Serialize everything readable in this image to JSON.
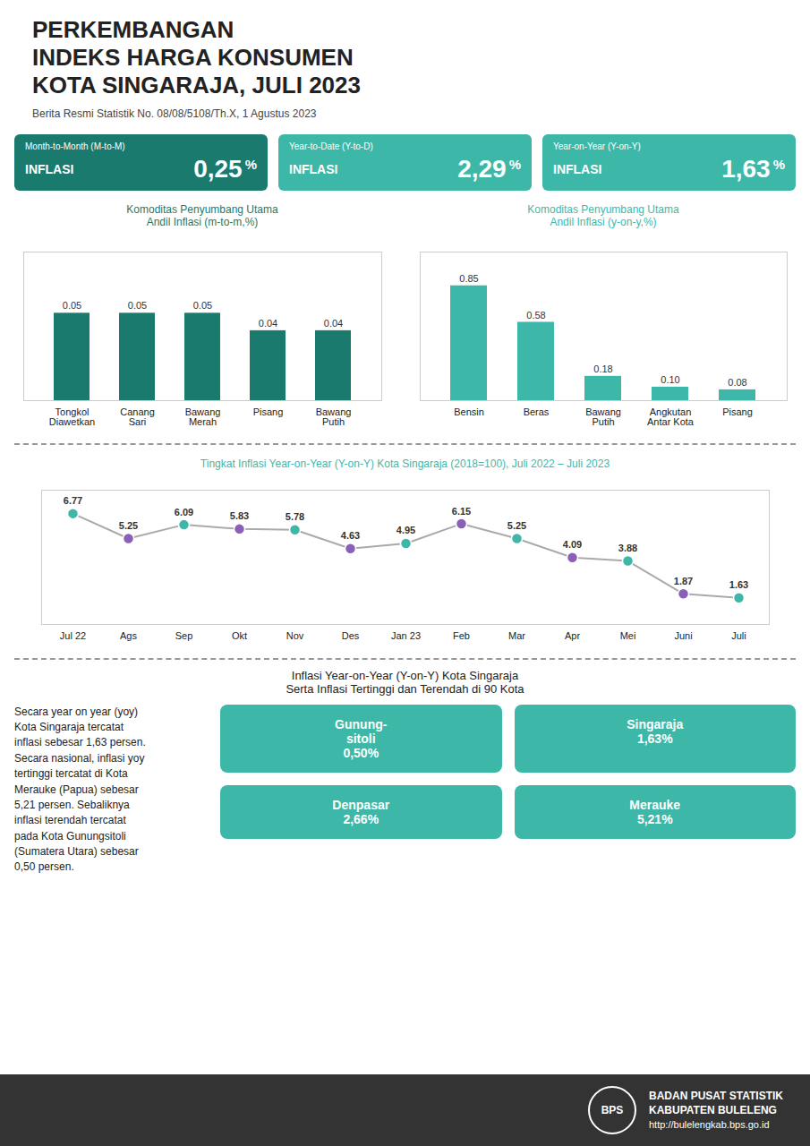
{
  "title": "PERKEMBANGAN\nINDEKS HARGA KONSUMEN\nKOTA SINGARAJA, JULI 2023",
  "subtitle": "Berita Resmi Statistik No. 08/08/5108/Th.X, 1 Agustus 2023",
  "boxes": [
    {
      "label": "Month-to-Month (M-to-M)",
      "tag": "INFLASI",
      "text": "0,25",
      "unit": "%",
      "color": "#1a7a6e"
    },
    {
      "label": "Year-to-Date (Y-to-D)",
      "tag": "INFLASI",
      "text": "2,29",
      "unit": "%",
      "color": "#3db8a8"
    },
    {
      "label": "Year-on-Year (Y-on-Y)",
      "tag": "INFLASI",
      "text": "1,63",
      "unit": "%",
      "color": "#3db8a8"
    }
  ],
  "chart_data": [
    {
      "type": "bar",
      "title": "Komoditas Penyumbang Utama\nAndil Inflasi (m-to-m,%)",
      "categories": [
        "Tongkol\nDiawetkan",
        "Canang\nSari",
        "Bawang\nMerah",
        "Pisang",
        "Bawang\nPutih"
      ],
      "values": [
        0.05,
        0.05,
        0.05,
        0.04,
        0.04
      ],
      "color": "#1a7a6e",
      "ylim": [
        0,
        0.085
      ],
      "data_labels": true,
      "tick_labels": "x"
    },
    {
      "type": "bar",
      "title": "Komoditas Penyumbang Utama\nAndil Inflasi (y-on-y,%)",
      "categories": [
        "Bensin",
        "Beras",
        "Bawang\nPutih",
        "Angkutan\nAntar Kota",
        "Pisang"
      ],
      "values": [
        0.85,
        0.58,
        0.18,
        0.1,
        0.08
      ],
      "value_labels": [
        "0.85",
        "0.58",
        "0.18",
        "0.10",
        "0.08"
      ],
      "color": "#3db8a8",
      "ylim": [
        0,
        1.1
      ],
      "data_labels": true,
      "tick_labels": "x"
    },
    {
      "type": "line",
      "title": "Tingkat Inflasi Year-on-Year (Y-on-Y) Kota Singaraja (2018=100), Juli 2022 – Juli 2023",
      "categories": [
        "Jul 22",
        "Ags",
        "Sep",
        "Okt",
        "Nov",
        "Des",
        "Jan 23",
        "Feb",
        "Mar",
        "Apr",
        "Mei",
        "Juni",
        "Juli"
      ],
      "values": [
        6.77,
        5.25,
        6.09,
        5.83,
        5.78,
        4.63,
        4.95,
        6.15,
        5.25,
        4.09,
        3.88,
        1.87,
        1.63
      ],
      "color": "#aaaaaa",
      "colors": [
        "#3db8a8",
        "#8b5fb8",
        "#3db8a8",
        "#8b5fb8",
        "#3db8a8",
        "#8b5fb8",
        "#3db8a8",
        "#8b5fb8",
        "#3db8a8",
        "#8b5fb8",
        "#3db8a8",
        "#8b5fb8",
        "#3db8a8"
      ],
      "marker": "circle",
      "ylim": [
        0,
        8.2
      ],
      "data_labels": true,
      "tick_labels": "x"
    }
  ],
  "map": {
    "title": "Inflasi Year-on-Year (Y-on-Y) Kota Singaraja\nSerta Inflasi Tertinggi dan Terendah di 90 Kota",
    "description": "Secara year on year (yoy)\nKota Singaraja tercatat\ninflasi sebesar 1,63 persen.\nSecara nasional, inflasi yoy\ntertinggi tercatat di Kota\nMerauke (Papua) sebesar\n5,21 persen. Sebaliknya\ninflasi terendah tercatat\npada Kota Gunungsitoli\n(Sumatera Utara) sebesar\n0,50 persen.",
    "annotations": [
      {
        "text": "Gunung-\nsitoli\n0,50%",
        "color": "#3db8a8"
      },
      {
        "text": "Singaraja\n1,63%",
        "color": "#3db8a8"
      },
      {
        "text": "Denpasar\n2,66%",
        "color": "#3db8a8"
      },
      {
        "text": "Merauke\n5,21%",
        "color": "#3db8a8"
      }
    ]
  },
  "footer": [
    "BPS",
    "BADAN PUSAT STATISTIK",
    "KABUPATEN BULELENG",
    "http://bulelengkab.bps.go.id"
  ]
}
